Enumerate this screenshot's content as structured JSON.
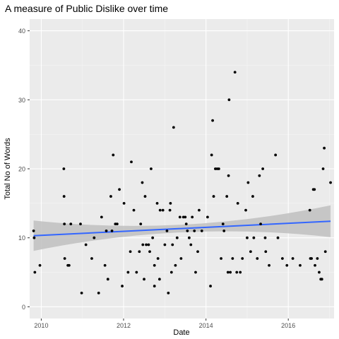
{
  "chart_data": {
    "type": "scatter",
    "title": "A measure of Public Dislike over time",
    "xlabel": "Date",
    "ylabel": "Total No of Words",
    "x_ticks": [
      "2010",
      "2012",
      "2014",
      "2016"
    ],
    "y_ticks": [
      "0",
      "10",
      "20",
      "30",
      "40"
    ],
    "xlim": [
      "2009-09-20",
      "2017-02-10"
    ],
    "ylim": [
      -1.7,
      41.7
    ],
    "grid": true,
    "legend": "none",
    "trend": {
      "method": "linear",
      "start": [
        "2009-10-25",
        10.3
      ],
      "end": [
        "2017-01-10",
        12.4
      ],
      "ci_start": [
        8.1,
        12.5
      ],
      "ci_end": [
        10.1,
        14.7
      ]
    },
    "colors": {
      "panel": "#ebebeb",
      "grid": "#ffffff",
      "points": "#000000",
      "trend": "#3366ff",
      "ribbon": "#bfbfbf"
    },
    "points": [
      {
        "x": "2009-10-25",
        "y": 11
      },
      {
        "x": "2009-10-30",
        "y": 10
      },
      {
        "x": "2009-11-05",
        "y": 5
      },
      {
        "x": "2009-12-20",
        "y": 6
      },
      {
        "x": "2010-07-20",
        "y": 20
      },
      {
        "x": "2010-07-22",
        "y": 16
      },
      {
        "x": "2010-07-25",
        "y": 12
      },
      {
        "x": "2010-07-28",
        "y": 7
      },
      {
        "x": "2010-08-25",
        "y": 6
      },
      {
        "x": "2010-09-05",
        "y": 6
      },
      {
        "x": "2010-09-20",
        "y": 12
      },
      {
        "x": "2010-12-15",
        "y": 12
      },
      {
        "x": "2010-12-25",
        "y": 2
      },
      {
        "x": "2011-02-01",
        "y": 9
      },
      {
        "x": "2011-03-25",
        "y": 7
      },
      {
        "x": "2011-04-15",
        "y": 10
      },
      {
        "x": "2011-05-25",
        "y": 2
      },
      {
        "x": "2011-06-20",
        "y": 13
      },
      {
        "x": "2011-07-20",
        "y": 6
      },
      {
        "x": "2011-08-01",
        "y": 11
      },
      {
        "x": "2011-08-15",
        "y": 4
      },
      {
        "x": "2011-09-10",
        "y": 16
      },
      {
        "x": "2011-09-20",
        "y": 11
      },
      {
        "x": "2011-10-01",
        "y": 22
      },
      {
        "x": "2011-10-20",
        "y": 12
      },
      {
        "x": "2011-11-05",
        "y": 12
      },
      {
        "x": "2011-11-25",
        "y": 17
      },
      {
        "x": "2011-12-20",
        "y": 3
      },
      {
        "x": "2012-01-05",
        "y": 15
      },
      {
        "x": "2012-02-10",
        "y": 5
      },
      {
        "x": "2012-03-01",
        "y": 8
      },
      {
        "x": "2012-03-10",
        "y": 21
      },
      {
        "x": "2012-04-01",
        "y": 14
      },
      {
        "x": "2012-04-25",
        "y": 5
      },
      {
        "x": "2012-05-20",
        "y": 8
      },
      {
        "x": "2012-06-01",
        "y": 12
      },
      {
        "x": "2012-06-15",
        "y": 18
      },
      {
        "x": "2012-06-20",
        "y": 9
      },
      {
        "x": "2012-07-01",
        "y": 4
      },
      {
        "x": "2012-07-10",
        "y": 16
      },
      {
        "x": "2012-07-20",
        "y": 9
      },
      {
        "x": "2012-08-10",
        "y": 9
      },
      {
        "x": "2012-08-20",
        "y": 8
      },
      {
        "x": "2012-09-01",
        "y": 20
      },
      {
        "x": "2012-09-15",
        "y": 10
      },
      {
        "x": "2012-10-01",
        "y": 6
      },
      {
        "x": "2012-10-01",
        "y": 3
      },
      {
        "x": "2012-10-25",
        "y": 15
      },
      {
        "x": "2012-11-01",
        "y": 7
      },
      {
        "x": "2012-11-15",
        "y": 4
      },
      {
        "x": "2012-11-20",
        "y": 14
      },
      {
        "x": "2012-12-15",
        "y": 14
      },
      {
        "x": "2013-01-01",
        "y": 9
      },
      {
        "x": "2013-01-20",
        "y": 11
      },
      {
        "x": "2013-02-01",
        "y": 2
      },
      {
        "x": "2013-02-15",
        "y": 14
      },
      {
        "x": "2013-02-20",
        "y": 15
      },
      {
        "x": "2013-03-01",
        "y": 5
      },
      {
        "x": "2013-03-10",
        "y": 9
      },
      {
        "x": "2013-03-20",
        "y": 26
      },
      {
        "x": "2013-04-05",
        "y": 6
      },
      {
        "x": "2013-04-20",
        "y": 10
      },
      {
        "x": "2013-05-15",
        "y": 13
      },
      {
        "x": "2013-05-25",
        "y": 7
      },
      {
        "x": "2013-06-15",
        "y": 13
      },
      {
        "x": "2013-07-01",
        "y": 13
      },
      {
        "x": "2013-07-10",
        "y": 12
      },
      {
        "x": "2013-07-20",
        "y": 11
      },
      {
        "x": "2013-08-05",
        "y": 10
      },
      {
        "x": "2013-08-20",
        "y": 9
      },
      {
        "x": "2013-09-01",
        "y": 13
      },
      {
        "x": "2013-09-20",
        "y": 11
      },
      {
        "x": "2013-10-01",
        "y": 5
      },
      {
        "x": "2013-10-20",
        "y": 8
      },
      {
        "x": "2013-11-01",
        "y": 14
      },
      {
        "x": "2013-11-25",
        "y": 11
      },
      {
        "x": "2014-01-15",
        "y": 13
      },
      {
        "x": "2014-02-10",
        "y": 3
      },
      {
        "x": "2014-02-20",
        "y": 22
      },
      {
        "x": "2014-03-01",
        "y": 27
      },
      {
        "x": "2014-03-10",
        "y": 16
      },
      {
        "x": "2014-03-25",
        "y": 20
      },
      {
        "x": "2014-04-10",
        "y": 20
      },
      {
        "x": "2014-04-25",
        "y": 20
      },
      {
        "x": "2014-05-15",
        "y": 7
      },
      {
        "x": "2014-06-01",
        "y": 12
      },
      {
        "x": "2014-06-10",
        "y": 11
      },
      {
        "x": "2014-07-05",
        "y": 16
      },
      {
        "x": "2014-07-15",
        "y": 5
      },
      {
        "x": "2014-07-20",
        "y": 19
      },
      {
        "x": "2014-07-25",
        "y": 30
      },
      {
        "x": "2014-08-05",
        "y": 5
      },
      {
        "x": "2014-08-25",
        "y": 7
      },
      {
        "x": "2014-09-15",
        "y": 34
      },
      {
        "x": "2014-10-01",
        "y": 5
      },
      {
        "x": "2014-10-10",
        "y": 15
      },
      {
        "x": "2014-11-01",
        "y": 5
      },
      {
        "x": "2014-11-20",
        "y": 7
      },
      {
        "x": "2014-12-20",
        "y": 14
      },
      {
        "x": "2015-01-01",
        "y": 10
      },
      {
        "x": "2015-01-10",
        "y": 18
      },
      {
        "x": "2015-02-01",
        "y": 8
      },
      {
        "x": "2015-02-20",
        "y": 16
      },
      {
        "x": "2015-03-01",
        "y": 10
      },
      {
        "x": "2015-04-01",
        "y": 7
      },
      {
        "x": "2015-04-20",
        "y": 19
      },
      {
        "x": "2015-05-01",
        "y": 12
      },
      {
        "x": "2015-05-20",
        "y": 20
      },
      {
        "x": "2015-06-10",
        "y": 10
      },
      {
        "x": "2015-06-15",
        "y": 8
      },
      {
        "x": "2015-07-15",
        "y": 6
      },
      {
        "x": "2015-09-10",
        "y": 22
      },
      {
        "x": "2015-10-01",
        "y": 10
      },
      {
        "x": "2015-11-10",
        "y": 7
      },
      {
        "x": "2015-12-20",
        "y": 6
      },
      {
        "x": "2016-02-10",
        "y": 7
      },
      {
        "x": "2016-04-15",
        "y": 6
      },
      {
        "x": "2016-07-10",
        "y": 14
      },
      {
        "x": "2016-07-15",
        "y": 7
      },
      {
        "x": "2016-07-25",
        "y": 7
      },
      {
        "x": "2016-08-10",
        "y": 17
      },
      {
        "x": "2016-08-20",
        "y": 17
      },
      {
        "x": "2016-08-25",
        "y": 6
      },
      {
        "x": "2016-09-15",
        "y": 7
      },
      {
        "x": "2016-10-01",
        "y": 5
      },
      {
        "x": "2016-10-15",
        "y": 4
      },
      {
        "x": "2016-10-25",
        "y": 4
      },
      {
        "x": "2016-11-05",
        "y": 20
      },
      {
        "x": "2016-11-15",
        "y": 23
      },
      {
        "x": "2016-11-25",
        "y": 8
      },
      {
        "x": "2017-01-10",
        "y": 18
      }
    ]
  }
}
